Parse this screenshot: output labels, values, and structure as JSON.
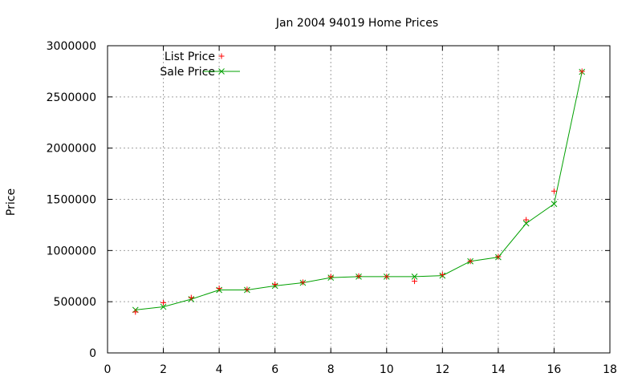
{
  "chart_data": {
    "type": "line",
    "title": "Jan 2004 94019 Home Prices",
    "xlabel": "",
    "ylabel": "Price",
    "xlim": [
      0,
      18
    ],
    "ylim": [
      0,
      3000000
    ],
    "x_ticks": [
      0,
      2,
      4,
      6,
      8,
      10,
      12,
      14,
      16,
      18
    ],
    "y_ticks": [
      0,
      500000,
      1000000,
      1500000,
      2000000,
      2500000,
      3000000
    ],
    "grid": true,
    "legend_position": "top-left",
    "series": [
      {
        "name": "List Price",
        "style": "points",
        "marker": "+",
        "color": "#ff0000",
        "x": [
          1,
          2,
          3,
          4,
          5,
          6,
          7,
          8,
          9,
          10,
          11,
          12,
          13,
          14,
          15,
          16,
          17
        ],
        "y": [
          400000,
          490000,
          540000,
          630000,
          620000,
          670000,
          690000,
          745000,
          750000,
          745000,
          700000,
          765000,
          895000,
          940000,
          1300000,
          1580000,
          2750000
        ]
      },
      {
        "name": "Sale Price",
        "style": "linespoints",
        "marker": "x",
        "color": "#00a000",
        "x": [
          1,
          2,
          3,
          4,
          5,
          6,
          7,
          8,
          9,
          10,
          11,
          12,
          13,
          14,
          15,
          16,
          17
        ],
        "y": [
          420000,
          450000,
          525000,
          615000,
          615000,
          655000,
          685000,
          735000,
          745000,
          745000,
          745000,
          755000,
          895000,
          935000,
          1265000,
          1455000,
          2745000
        ]
      }
    ]
  }
}
